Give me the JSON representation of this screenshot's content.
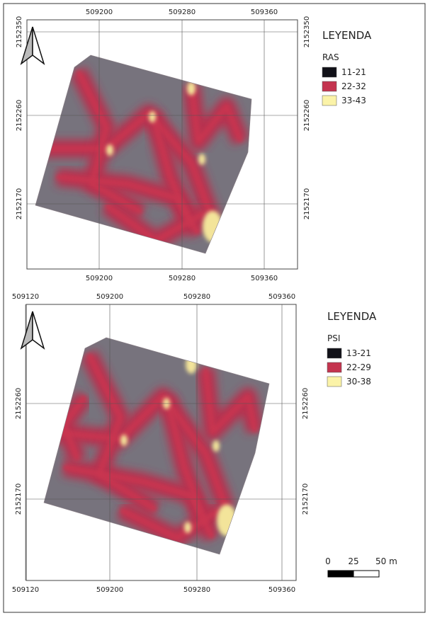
{
  "maps": [
    {
      "top_labels": [
        "509200",
        "509280",
        "509360"
      ],
      "bottom_labels": [
        "509200",
        "509280",
        "509360"
      ],
      "left_labels": [
        "2152350",
        "2152260",
        "2152170"
      ],
      "right_labels": [
        "2152350",
        "2152260",
        "2152170"
      ],
      "legend": {
        "title": "LEYENDA",
        "variable": "RAS",
        "items": [
          "11-21",
          "22-32",
          "33-43"
        ]
      }
    },
    {
      "top_labels": [
        "509120",
        "509200",
        "509280",
        "509360"
      ],
      "bottom_labels": [
        "509120",
        "509200",
        "509280",
        "509360"
      ],
      "left_labels": [
        "2152260",
        "2152170"
      ],
      "right_labels": [
        "2152260",
        "2152170"
      ],
      "legend": {
        "title": "LEYENDA",
        "variable": "PSI",
        "items": [
          "13-21",
          "22-29",
          "30-38"
        ]
      }
    }
  ],
  "scale_bar": {
    "labels": [
      "0",
      "25",
      "50 m"
    ]
  }
}
